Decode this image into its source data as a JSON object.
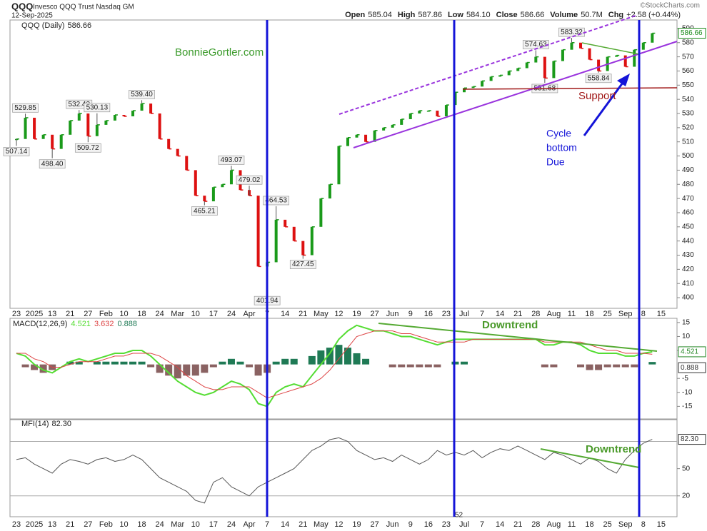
{
  "header": {
    "symbol": "QQQ",
    "name": "Invesco QQQ Trust Nasdaq GM",
    "date": "12-Sep-2025",
    "quote": [
      {
        "label": "Open",
        "value": "585.04"
      },
      {
        "label": "High",
        "value": "587.86"
      },
      {
        "label": "Low",
        "value": "584.10"
      },
      {
        "label": "Close",
        "value": "586.66"
      },
      {
        "label": "Volume",
        "value": "50.7M"
      },
      {
        "label": "Chg",
        "value": "+2.58 (+0.44%)"
      }
    ],
    "source": "©StockCharts.com"
  },
  "annotations": {
    "watermark": "BonnieGortler.com",
    "support": "Support",
    "cycle": [
      "Cycle",
      "bottom",
      "Due"
    ],
    "macd_trend": "Downtrend",
    "mfi_trend": "Downtrend",
    "bar_count": "52"
  },
  "chart_data": [
    {
      "type": "stock",
      "categories": [
        "23",
        null,
        "2025",
        null,
        "13",
        null,
        "21",
        null,
        "27",
        null,
        "Feb",
        null,
        "10",
        null,
        "18",
        null,
        "24",
        null,
        "Mar",
        null,
        "10",
        null,
        "17",
        null,
        "24",
        null,
        "Apr",
        null,
        "7",
        null,
        "14",
        null,
        "21",
        null,
        "May",
        null,
        "12",
        null,
        "19",
        null,
        "27",
        null,
        "Jun",
        null,
        "9",
        null,
        "16",
        null,
        "23",
        null,
        "Jul",
        null,
        "7",
        null,
        "14",
        null,
        "21",
        null,
        "28",
        null,
        "Aug",
        null,
        "11",
        null,
        "18",
        null,
        "25",
        null,
        "Sep",
        null,
        "8",
        null,
        "15"
      ],
      "series": [
        {
          "name": "QQQ (Daily)",
          "up_color": "#1a9a1a",
          "down_color": "#dd1111",
          "values": [
            512,
            527,
            512,
            515,
            505,
            515,
            525,
            530,
            514,
            522,
            525,
            529,
            528,
            532,
            537,
            530,
            512,
            505,
            500,
            490,
            472,
            468,
            478,
            480,
            490,
            476,
            472,
            422,
            425,
            455,
            450,
            440,
            430,
            450,
            470,
            480,
            507,
            513,
            515,
            510,
            518,
            520,
            522,
            526,
            530,
            532,
            532,
            528,
            536,
            545,
            548,
            549,
            553,
            556,
            557,
            560,
            562,
            566,
            570,
            555,
            567,
            575,
            580,
            576,
            568,
            560,
            570,
            571,
            563,
            575,
            580,
            586.66,
            null
          ]
        }
      ],
      "extremes": [
        507.14,
        529.85,
        null,
        null,
        {
          "value": 498.4,
          "label": "498.40"
        },
        null,
        null,
        532.43,
        509.72,
        530.13,
        null,
        null,
        null,
        null,
        {
          "value": 539.4,
          "label": "539.40"
        },
        null,
        null,
        null,
        null,
        null,
        null,
        465.21,
        null,
        null,
        493.07,
        null,
        479.02,
        null,
        401.94,
        464.53,
        null,
        null,
        427.45,
        null,
        null,
        null,
        null,
        null,
        null,
        null,
        null,
        null,
        null,
        null,
        null,
        null,
        null,
        null,
        null,
        null,
        null,
        null,
        null,
        null,
        null,
        null,
        null,
        null,
        574.63,
        551.68,
        null,
        null,
        583.32,
        null,
        null,
        558.84,
        null,
        null,
        null,
        null,
        null,
        null,
        null
      ],
      "ylim": [
        396,
        596
      ],
      "yticks": [
        400,
        410,
        420,
        430,
        440,
        450,
        460,
        470,
        480,
        490,
        500,
        510,
        520,
        530,
        540,
        550,
        560,
        570,
        580,
        590
      ]
    },
    {
      "type": "macd",
      "title": "MACD(12,26,9)",
      "series": [
        {
          "color": "#55dd33",
          "values": [
            4,
            3,
            0,
            -2,
            -3,
            -1,
            1,
            2,
            1,
            2,
            3,
            4,
            4,
            5,
            5,
            3,
            0,
            -3,
            -6,
            -8,
            -10,
            -11,
            -10,
            -8,
            -6,
            -7,
            -9,
            -14,
            -15,
            -10,
            -8,
            -7,
            -8,
            -4,
            0,
            4,
            9,
            12,
            14,
            13,
            12,
            12,
            11,
            10,
            10,
            9,
            8,
            7,
            8,
            9,
            9,
            9,
            9,
            9,
            9,
            9,
            9,
            9,
            9,
            7,
            7,
            8,
            8,
            7,
            5,
            4,
            4,
            4,
            3,
            3,
            4,
            4.521,
            null
          ]
        },
        {
          "color": "#dd4444",
          "values": [
            4,
            4,
            2,
            1,
            -1,
            -1,
            0,
            1,
            1,
            1,
            2,
            3,
            3,
            4,
            4,
            4,
            3,
            1,
            -1,
            -4,
            -6,
            -8,
            -9,
            -9,
            -8,
            -8,
            -8,
            -10,
            -12,
            -11,
            -10,
            -9,
            -8,
            -7,
            -5,
            -2,
            2,
            6,
            10,
            11,
            12,
            12,
            12,
            11,
            11,
            10,
            9,
            8,
            8,
            8,
            8,
            9,
            9,
            9,
            9,
            9,
            9,
            9,
            9,
            8,
            8,
            8,
            8,
            8,
            7,
            6,
            5,
            5,
            4,
            4,
            4,
            3.632,
            null
          ]
        },
        {
          "kind": "histogram",
          "pos_color": "#1f7a55",
          "neg_color": "#8a6262",
          "values": [
            0,
            -1,
            -2,
            -3,
            -2,
            0,
            1,
            1,
            0,
            1,
            1,
            1,
            1,
            1,
            1,
            -1,
            -3,
            -4,
            -5,
            -4,
            -4,
            -3,
            -1,
            1,
            2,
            1,
            -1,
            -4,
            -3,
            1,
            2,
            2,
            0,
            3,
            5,
            6,
            7,
            6,
            4,
            2,
            0,
            0,
            -1,
            -1,
            -1,
            -1,
            -1,
            -1,
            0,
            1,
            1,
            0,
            0,
            0,
            0,
            0,
            0,
            0,
            0,
            -1,
            -1,
            0,
            0,
            -1,
            -2,
            -2,
            -1,
            -1,
            -1,
            -1,
            0,
            0.888,
            null
          ]
        }
      ],
      "ylim": [
        -19.5,
        16.5
      ],
      "yticks": [
        -15,
        -10,
        -5,
        5,
        10,
        15
      ]
    },
    {
      "type": "mfi",
      "title": "MFI(14)",
      "series": [
        {
          "color": "#555555",
          "values": [
            60,
            62,
            55,
            50,
            45,
            55,
            60,
            58,
            55,
            60,
            62,
            58,
            60,
            65,
            60,
            50,
            40,
            35,
            30,
            25,
            15,
            12,
            35,
            40,
            30,
            25,
            20,
            30,
            35,
            40,
            45,
            50,
            60,
            70,
            75,
            82,
            84,
            80,
            70,
            65,
            60,
            62,
            58,
            65,
            60,
            55,
            60,
            70,
            65,
            68,
            65,
            70,
            62,
            68,
            72,
            70,
            75,
            70,
            65,
            60,
            68,
            65,
            60,
            55,
            62,
            58,
            50,
            45,
            60,
            70,
            78,
            82.3,
            null
          ],
          "value_labels": [
            null,
            null,
            null,
            null,
            null,
            null,
            null,
            null,
            null,
            null,
            null,
            null,
            null,
            null,
            null,
            null,
            null,
            null,
            null,
            null,
            null,
            null,
            null,
            null,
            null,
            null,
            null,
            null,
            null,
            null,
            null,
            null,
            null,
            null,
            null,
            null,
            null,
            null,
            null,
            null,
            null,
            null,
            null,
            null,
            null,
            null,
            null,
            null,
            null,
            null,
            null,
            null,
            null,
            null,
            null,
            null,
            null,
            null,
            null,
            null,
            null,
            null,
            null,
            null,
            null,
            null,
            null,
            null,
            null,
            null,
            null,
            "82.30",
            null
          ]
        }
      ],
      "ylim": [
        -3,
        104
      ],
      "yticks": [
        20,
        50
      ],
      "levels": [
        20,
        80
      ]
    }
  ]
}
